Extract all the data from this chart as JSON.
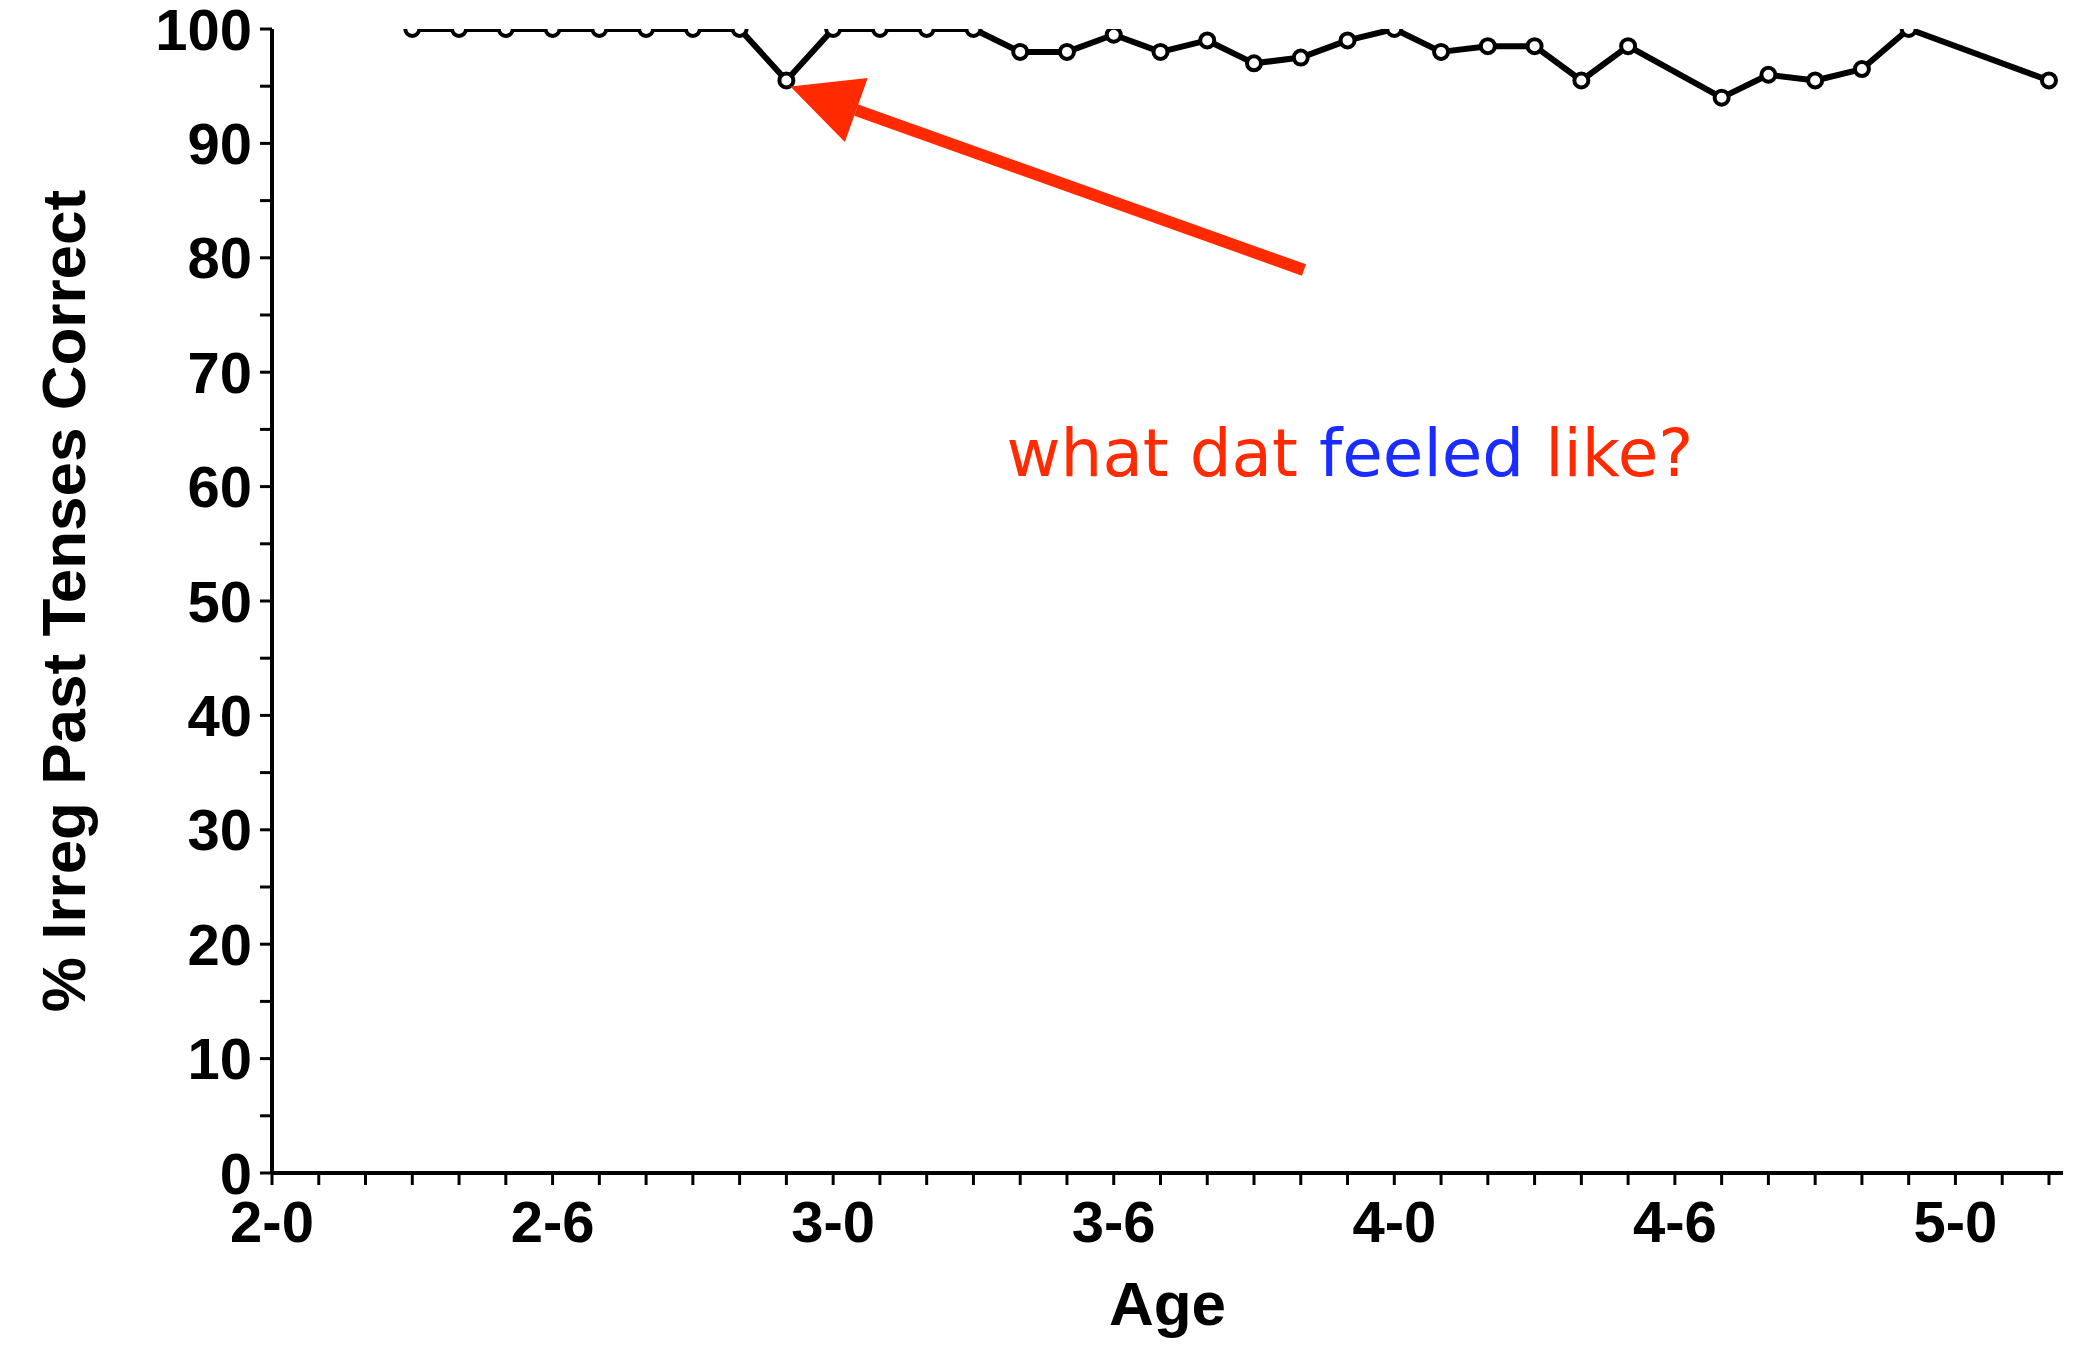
{
  "chart_data": {
    "type": "line",
    "xlabel": "Age",
    "ylabel": "% Irreg Past Tenses Correct",
    "categories": [
      "2-0",
      null,
      null,
      null,
      null,
      null,
      "2-6",
      null,
      null,
      null,
      null,
      null,
      "3-0",
      null,
      null,
      null,
      null,
      null,
      "3-6",
      null,
      null,
      null,
      null,
      null,
      "4-0",
      null,
      null,
      null,
      null,
      null,
      "4-6",
      null,
      null,
      null,
      null,
      null,
      "5-0",
      null,
      null
    ],
    "series": [
      {
        "color": "#000000",
        "values": [
          null,
          null,
          null,
          100,
          100,
          100,
          100,
          100,
          100,
          100,
          100,
          95.5,
          100,
          100,
          100,
          100,
          98,
          98,
          99.5,
          98,
          99,
          97,
          97.5,
          99,
          100,
          98,
          98.5,
          98.5,
          95.5,
          98.5,
          null,
          94,
          96,
          95.5,
          96.5,
          100,
          null,
          null,
          95.5
        ]
      }
    ],
    "ylim": [
      0,
      100
    ],
    "yticks": [
      0,
      {
        "value": 5,
        "label": null
      },
      10,
      {
        "value": 15,
        "label": null
      },
      20,
      {
        "value": 25,
        "label": null
      },
      30,
      {
        "value": 35,
        "label": null
      },
      40,
      {
        "value": 45,
        "label": null
      },
      50,
      {
        "value": 55,
        "label": null
      },
      60,
      {
        "value": 65,
        "label": null
      },
      70,
      {
        "value": 75,
        "label": null
      },
      80,
      {
        "value": 85,
        "label": null
      },
      90,
      {
        "value": 95,
        "label": null
      },
      100
    ],
    "marker": "circle",
    "line_style": "solid",
    "grid": false,
    "legend": false,
    "annotations": [
      "what dat feeled like?"
    ]
  }
}
